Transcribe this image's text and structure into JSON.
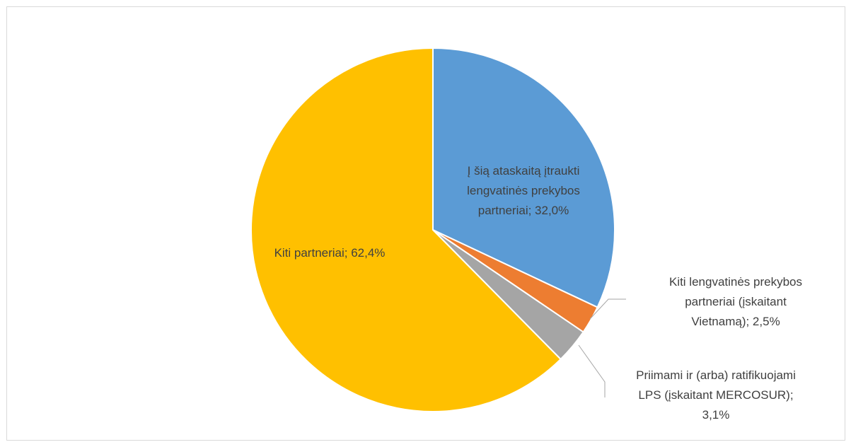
{
  "chart_data": {
    "type": "pie",
    "title": "",
    "slices": [
      {
        "label_lines": [
          "Į šią ataskaitą įtraukti",
          "lengvatinės prekybos",
          "partneriai; 32,0%"
        ],
        "value": 32.0,
        "color": "#5b9bd5"
      },
      {
        "label_lines": [
          "Kiti lengvatinės prekybos",
          "partneriai (įskaitant",
          "Vietnamą); 2,5%"
        ],
        "value": 2.5,
        "color": "#ed7d31"
      },
      {
        "label_lines": [
          "Priimami ir (arba) ratifikuojami",
          "LPS (įskaitant MERCOSUR);",
          "3,1%"
        ],
        "value": 3.1,
        "color": "#a5a5a5"
      },
      {
        "label_lines": [
          "Kiti partneriai; 62,4%"
        ],
        "value": 62.4,
        "color": "#ffc000"
      }
    ],
    "legend": "none",
    "start_angle_deg": 0,
    "direction": "clockwise"
  }
}
